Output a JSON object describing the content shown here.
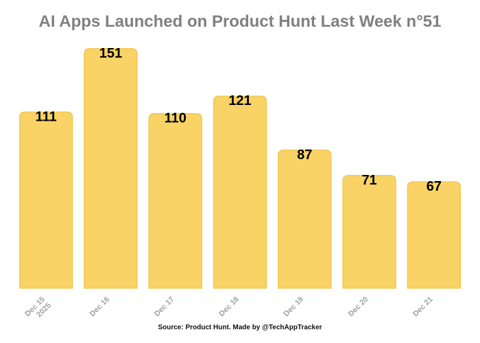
{
  "chart_data": {
    "type": "bar",
    "title": "AI Apps Launched on Product Hunt Last Week n°51",
    "categories": [
      [
        "Dec 15",
        "2025"
      ],
      [
        "Dec 16"
      ],
      [
        "Dec 17"
      ],
      [
        "Dec 18"
      ],
      [
        "Dec 19"
      ],
      [
        "Dec 20"
      ],
      [
        "Dec 21"
      ]
    ],
    "values": [
      111,
      151,
      110,
      121,
      87,
      71,
      67
    ],
    "xlabel": "",
    "ylabel": "",
    "ylim": [
      0,
      160
    ],
    "grid": false,
    "bar_color": "#f9d366",
    "bar_border_color": "#f3c84e",
    "source": "Source: Product Hunt. Made by @TechAppTracker"
  }
}
